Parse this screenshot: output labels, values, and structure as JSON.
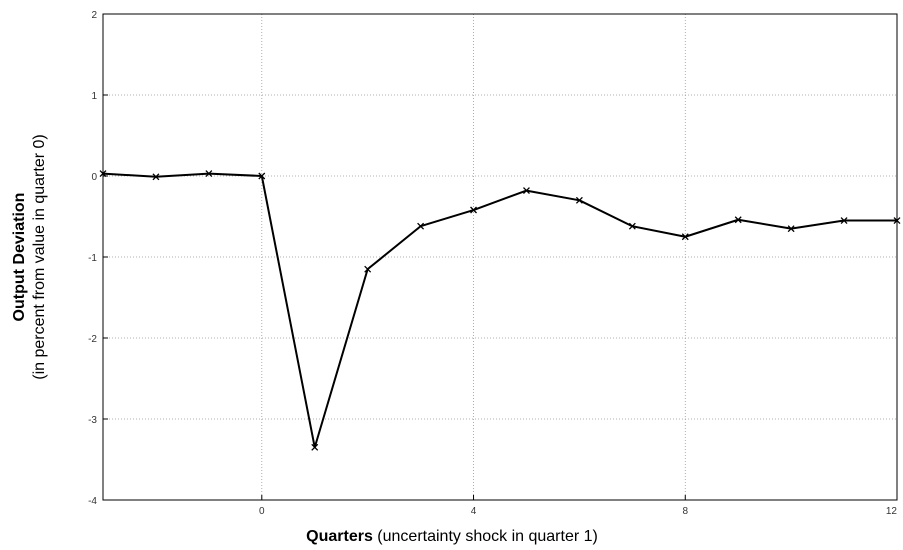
{
  "chart_data": {
    "type": "line",
    "title": "",
    "xlabel_bold": "Quarters",
    "xlabel_rest": " (uncertainty shock in quarter 1)",
    "ylabel_bold": "Output Deviation",
    "ylabel_rest": "(in percent from value in quarter 0)",
    "xlim": [
      -3,
      12
    ],
    "ylim": [
      -4,
      2
    ],
    "xticks": [
      0,
      4,
      8,
      12
    ],
    "yticks": [
      -4,
      -3,
      -2,
      -1,
      0,
      1,
      2
    ],
    "grid": true,
    "line_color": "#000000",
    "grid_color": "#999999",
    "series": [
      {
        "x": [
          -3,
          -2,
          -1,
          0,
          1,
          2,
          3,
          4,
          5,
          6,
          7,
          8,
          9,
          10,
          11,
          12
        ],
        "y": [
          0.03,
          -0.01,
          0.03,
          0.0,
          -3.35,
          -1.15,
          -0.62,
          -0.42,
          -0.18,
          -0.3,
          -0.62,
          -0.75,
          -0.54,
          -0.65,
          -0.55,
          -0.55
        ]
      }
    ]
  }
}
